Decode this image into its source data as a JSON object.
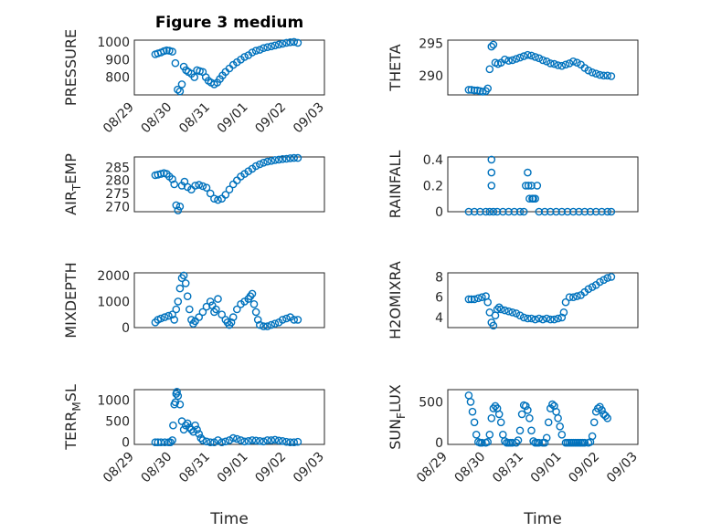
{
  "figure": {
    "title": "Figure 3 medium",
    "x_axis_label": "Time"
  },
  "colors": {
    "marker": "#0072bd",
    "axes": "#262626",
    "grid": "#e3e3e3"
  },
  "chart_data": [
    {
      "type": "scatter",
      "title": "Figure 3 medium",
      "ylabel": "PRESSURE",
      "yticks": [
        "800",
        "900",
        "1000"
      ],
      "ylim": [
        700,
        1010
      ],
      "xlim": [
        "08/29",
        "09/03"
      ],
      "xticks": [
        "08/29",
        "08/30",
        "08/31",
        "09/01",
        "09/02",
        "09/03"
      ],
      "x": [
        0.55,
        0.62,
        0.7,
        0.78,
        0.85,
        0.92,
        1.0,
        1.08,
        1.14,
        1.2,
        1.25,
        1.3,
        1.36,
        1.42,
        1.5,
        1.58,
        1.65,
        1.72,
        1.8,
        1.88,
        1.95,
        2.02,
        2.1,
        2.18,
        2.25,
        2.32,
        2.4,
        2.5,
        2.6,
        2.7,
        2.8,
        2.9,
        3.0,
        3.1,
        3.2,
        3.3,
        3.4,
        3.5,
        3.6,
        3.7,
        3.8,
        3.9,
        4.0,
        4.1,
        4.2,
        4.3
      ],
      "y": [
        930,
        935,
        940,
        948,
        952,
        950,
        945,
        880,
        730,
        720,
        760,
        860,
        840,
        830,
        820,
        800,
        840,
        835,
        830,
        800,
        780,
        770,
        760,
        770,
        790,
        810,
        830,
        850,
        870,
        885,
        900,
        915,
        925,
        940,
        950,
        955,
        965,
        970,
        975,
        980,
        985,
        990,
        995,
        998,
        1000,
        995
      ],
      "grid": true
    },
    {
      "type": "scatter",
      "ylabel": "THETA",
      "yticks": [
        "290",
        "295"
      ],
      "ylim": [
        287.0,
        295.5
      ],
      "xlim": [
        "08/29",
        "09/03"
      ],
      "x": [
        0.55,
        0.62,
        0.7,
        0.78,
        0.85,
        0.92,
        1.0,
        1.05,
        1.1,
        1.15,
        1.2,
        1.25,
        1.32,
        1.4,
        1.5,
        1.6,
        1.7,
        1.8,
        1.9,
        2.0,
        2.1,
        2.2,
        2.3,
        2.4,
        2.5,
        2.6,
        2.7,
        2.8,
        2.9,
        3.0,
        3.1,
        3.2,
        3.3,
        3.4,
        3.5,
        3.6,
        3.7,
        3.8,
        3.9,
        4.0,
        4.1,
        4.2,
        4.3
      ],
      "y": [
        287.8,
        287.8,
        287.7,
        287.7,
        287.6,
        287.5,
        287.6,
        288.0,
        291.0,
        294.5,
        294.8,
        292.0,
        291.8,
        292.0,
        292.5,
        292.3,
        292.4,
        292.6,
        292.8,
        293.0,
        293.2,
        293.1,
        292.9,
        292.7,
        292.4,
        292.2,
        291.9,
        291.8,
        291.6,
        291.5,
        291.7,
        291.9,
        292.2,
        292.0,
        291.7,
        291.2,
        290.8,
        290.5,
        290.3,
        290.1,
        290.0,
        290.0,
        289.9
      ],
      "grid": true
    },
    {
      "type": "scatter",
      "ylabel": "AIR_TEMP",
      "yticks": [
        "270",
        "275",
        "280",
        "285"
      ],
      "ylim": [
        268,
        289
      ],
      "xlim": [
        "08/29",
        "09/03"
      ],
      "x": [
        0.55,
        0.62,
        0.7,
        0.78,
        0.85,
        0.92,
        1.0,
        1.05,
        1.1,
        1.15,
        1.2,
        1.25,
        1.32,
        1.4,
        1.5,
        1.6,
        1.7,
        1.8,
        1.9,
        2.0,
        2.1,
        2.2,
        2.3,
        2.4,
        2.5,
        2.6,
        2.7,
        2.8,
        2.9,
        3.0,
        3.1,
        3.2,
        3.3,
        3.4,
        3.5,
        3.6,
        3.7,
        3.8,
        3.9,
        4.0,
        4.1,
        4.2,
        4.3
      ],
      "y": [
        282,
        282.2,
        282.5,
        282.8,
        282.5,
        281.5,
        280.5,
        278.5,
        270.5,
        268.5,
        270.0,
        278.0,
        279.5,
        277.5,
        276.5,
        278.0,
        278.3,
        277.8,
        277.2,
        275.0,
        273.0,
        272.5,
        273.0,
        274.5,
        276.5,
        278.5,
        280.0,
        281.5,
        282.5,
        283.5,
        284.5,
        285.5,
        286.2,
        286.8,
        287.2,
        287.5,
        287.8,
        288.0,
        288.2,
        288.3,
        288.5,
        288.6,
        288.6
      ],
      "grid": true
    },
    {
      "type": "scatter",
      "ylabel": "RAINFALL",
      "yticks": [
        "0",
        "0.2",
        "0.4"
      ],
      "ylim": [
        0,
        0.42
      ],
      "xlim": [
        "08/29",
        "09/03"
      ],
      "x": [
        0.55,
        0.7,
        0.85,
        1.0,
        1.1,
        1.15,
        1.15,
        1.15,
        1.2,
        1.3,
        1.45,
        1.6,
        1.75,
        1.9,
        2.0,
        2.05,
        2.1,
        2.12,
        2.15,
        2.2,
        2.22,
        2.25,
        2.3,
        2.35,
        2.4,
        2.55,
        2.7,
        2.85,
        3.0,
        3.15,
        3.3,
        3.45,
        3.6,
        3.75,
        3.9,
        4.05,
        4.2,
        4.3
      ],
      "y": [
        0,
        0,
        0,
        0,
        0,
        0.4,
        0.3,
        0.2,
        0,
        0,
        0,
        0,
        0,
        0,
        0,
        0.2,
        0.3,
        0.2,
        0.1,
        0.2,
        0.1,
        0.1,
        0.1,
        0.2,
        0,
        0,
        0,
        0,
        0,
        0,
        0,
        0,
        0,
        0,
        0,
        0,
        0,
        0
      ],
      "grid": true
    },
    {
      "type": "scatter",
      "ylabel": "MIXDEPTH",
      "yticks": [
        "0",
        "1000",
        "2000"
      ],
      "ylim": [
        0,
        2100
      ],
      "xlim": [
        "08/29",
        "09/03"
      ],
      "x": [
        0.55,
        0.62,
        0.7,
        0.8,
        0.9,
        1.0,
        1.05,
        1.1,
        1.15,
        1.2,
        1.25,
        1.3,
        1.35,
        1.4,
        1.45,
        1.5,
        1.55,
        1.6,
        1.7,
        1.8,
        1.9,
        2.0,
        2.05,
        2.1,
        2.15,
        2.2,
        2.3,
        2.4,
        2.45,
        2.5,
        2.55,
        2.6,
        2.7,
        2.8,
        2.9,
        3.0,
        3.05,
        3.1,
        3.15,
        3.2,
        3.25,
        3.3,
        3.4,
        3.5,
        3.6,
        3.7,
        3.8,
        3.9,
        4.0,
        4.1,
        4.2,
        4.3
      ],
      "y": [
        200,
        300,
        350,
        400,
        450,
        500,
        300,
        700,
        1000,
        1500,
        1900,
        2000,
        1700,
        1200,
        700,
        300,
        150,
        250,
        400,
        600,
        800,
        1000,
        850,
        600,
        700,
        1100,
        500,
        300,
        200,
        100,
        200,
        400,
        700,
        900,
        1000,
        1100,
        1200,
        1300,
        900,
        600,
        300,
        100,
        50,
        50,
        100,
        150,
        200,
        300,
        350,
        400,
        300,
        300
      ],
      "grid": true
    },
    {
      "type": "scatter",
      "ylabel": "H2OMIXRA",
      "yticks": [
        "4",
        "6",
        "8"
      ],
      "ylim": [
        3,
        8.4
      ],
      "xlim": [
        "08/29",
        "09/03"
      ],
      "x": [
        0.55,
        0.62,
        0.7,
        0.8,
        0.9,
        1.0,
        1.05,
        1.1,
        1.15,
        1.2,
        1.25,
        1.3,
        1.35,
        1.4,
        1.5,
        1.6,
        1.7,
        1.8,
        1.9,
        2.0,
        2.1,
        2.2,
        2.3,
        2.4,
        2.5,
        2.6,
        2.7,
        2.8,
        2.9,
        3.0,
        3.05,
        3.1,
        3.2,
        3.3,
        3.4,
        3.5,
        3.6,
        3.7,
        3.8,
        3.9,
        4.0,
        4.1,
        4.2,
        4.3
      ],
      "y": [
        5.8,
        5.8,
        5.8,
        5.9,
        6.0,
        6.1,
        5.5,
        4.5,
        3.5,
        3.2,
        4.2,
        4.8,
        5.0,
        4.8,
        4.7,
        4.6,
        4.5,
        4.4,
        4.2,
        4.0,
        3.9,
        3.9,
        3.8,
        3.9,
        3.8,
        3.9,
        3.8,
        3.8,
        3.9,
        4.0,
        4.5,
        5.5,
        6.0,
        6.0,
        6.1,
        6.2,
        6.5,
        6.8,
        7.0,
        7.2,
        7.5,
        7.7,
        7.9,
        8.0
      ],
      "grid": true
    },
    {
      "type": "scatter",
      "ylabel": "TERR_MSL",
      "yticks": [
        "0",
        "500",
        "1000"
      ],
      "ylim": [
        -50,
        1250
      ],
      "xlim": [
        "08/29",
        "09/03"
      ],
      "xticks": [
        "08/29",
        "08/30",
        "08/31",
        "09/01",
        "09/02",
        "09/03"
      ],
      "x": [
        0.55,
        0.62,
        0.7,
        0.8,
        0.9,
        0.95,
        1.0,
        1.02,
        1.05,
        1.08,
        1.1,
        1.12,
        1.15,
        1.2,
        1.25,
        1.3,
        1.35,
        1.4,
        1.45,
        1.5,
        1.55,
        1.6,
        1.65,
        1.7,
        1.75,
        1.8,
        1.9,
        2.0,
        2.1,
        2.2,
        2.3,
        2.4,
        2.5,
        2.6,
        2.7,
        2.8,
        2.9,
        3.0,
        3.1,
        3.2,
        3.3,
        3.4,
        3.5,
        3.6,
        3.7,
        3.8,
        3.9,
        4.0,
        4.1,
        4.2,
        4.3
      ],
      "y": [
        0,
        0,
        0,
        0,
        0,
        0,
        50,
        400,
        900,
        950,
        1150,
        1200,
        1100,
        900,
        500,
        300,
        400,
        450,
        350,
        300,
        250,
        400,
        300,
        200,
        100,
        50,
        20,
        0,
        0,
        50,
        0,
        20,
        50,
        100,
        80,
        50,
        20,
        30,
        50,
        40,
        30,
        20,
        50,
        50,
        60,
        40,
        30,
        10,
        0,
        0,
        10
      ],
      "grid": true
    },
    {
      "type": "scatter",
      "ylabel": "SUN_FLUX",
      "yticks": [
        "0",
        "500"
      ],
      "ylim": [
        -20,
        650
      ],
      "xlim": [
        "08/29",
        "09/03"
      ],
      "xticks": [
        "08/29",
        "08/30",
        "08/31",
        "09/01",
        "09/02",
        "09/03"
      ],
      "x": [
        0.55,
        0.6,
        0.65,
        0.7,
        0.75,
        0.8,
        0.85,
        0.9,
        1.0,
        1.05,
        1.1,
        1.15,
        1.2,
        1.25,
        1.3,
        1.35,
        1.4,
        1.45,
        1.5,
        1.55,
        1.6,
        1.65,
        1.7,
        1.8,
        1.85,
        1.9,
        1.95,
        2.0,
        2.05,
        2.1,
        2.15,
        2.2,
        2.25,
        2.3,
        2.35,
        2.4,
        2.5,
        2.55,
        2.6,
        2.65,
        2.7,
        2.75,
        2.8,
        2.85,
        2.9,
        2.95,
        3.0,
        3.1,
        3.15,
        3.2,
        3.25,
        3.3,
        3.35,
        3.4,
        3.45,
        3.5,
        3.55,
        3.6,
        3.7,
        3.75,
        3.8,
        3.85,
        3.9,
        3.95,
        4.0,
        4.05,
        4.1,
        4.15,
        4.2
      ],
      "y": [
        580,
        500,
        380,
        250,
        100,
        10,
        0,
        0,
        0,
        10,
        100,
        300,
        420,
        450,
        420,
        350,
        250,
        100,
        20,
        0,
        0,
        0,
        0,
        0,
        30,
        150,
        350,
        460,
        450,
        400,
        300,
        150,
        20,
        0,
        0,
        0,
        0,
        0,
        60,
        250,
        420,
        470,
        450,
        380,
        300,
        200,
        100,
        0,
        0,
        0,
        0,
        0,
        0,
        0,
        0,
        0,
        0,
        0,
        0,
        10,
        80,
        250,
        380,
        420,
        440,
        400,
        350,
        330,
        300
      ],
      "grid": true
    }
  ]
}
